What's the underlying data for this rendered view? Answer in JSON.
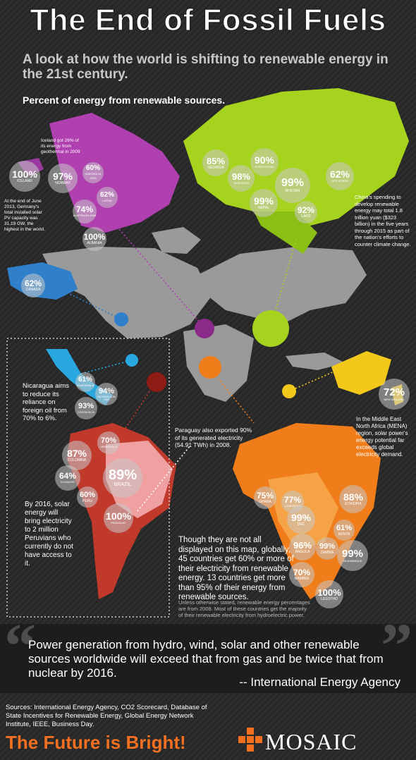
{
  "header": {
    "title": "The End of Fossil Fuels",
    "subtitle": "A look at how the world is shifting to renewable energy in the 21st century.",
    "section_label": "Percent of energy from renewable sources."
  },
  "colors": {
    "europe": "#b03fb0",
    "asia": "#a6d31d",
    "north_america": "#2f7fcb",
    "central_america": "#29a8e0",
    "south_america": "#c0392b",
    "africa": "#f07d1a",
    "australia": "#f2c81a",
    "land": "#9a9a9a",
    "accent": "#f37021"
  },
  "countries": [
    {
      "pct": "100%",
      "name": "ICELAND"
    },
    {
      "pct": "97%",
      "name": "NORWAY"
    },
    {
      "pct": "60%",
      "name": "SWEDEN IN 2009"
    },
    {
      "pct": "62%",
      "name": "LATVIA"
    },
    {
      "pct": "74%",
      "name": "AUSTRIA IN 2009"
    },
    {
      "pct": "100%",
      "name": "ALBANIA"
    },
    {
      "pct": "85%",
      "name": "GEORGIA"
    },
    {
      "pct": "90%",
      "name": "KYRGYZSTAN"
    },
    {
      "pct": "98%",
      "name": "TAJIKISTAN"
    },
    {
      "pct": "99%",
      "name": "BHUTAN"
    },
    {
      "pct": "62%",
      "name": "DPR KOREA"
    },
    {
      "pct": "99%",
      "name": "NEPAL"
    },
    {
      "pct": "92%",
      "name": "LAOS"
    },
    {
      "pct": "62%",
      "name": "CANADA"
    },
    {
      "pct": "61%",
      "name": "GUATEMALA"
    },
    {
      "pct": "94%",
      "name": "NICARAGUA IN 2009"
    },
    {
      "pct": "93%",
      "name": "COSTA RICA"
    },
    {
      "pct": "72%",
      "name": "NEW ZEALAND"
    },
    {
      "pct": "70%",
      "name": "VENEZUELA"
    },
    {
      "pct": "87%",
      "name": "COLOMBIA"
    },
    {
      "pct": "64%",
      "name": "ECUADOR"
    },
    {
      "pct": "89%",
      "name": "BRAZIL"
    },
    {
      "pct": "60%",
      "name": "PERU"
    },
    {
      "pct": "100%",
      "name": "PARAGUAY"
    },
    {
      "pct": "75%",
      "name": "GHANA"
    },
    {
      "pct": "77%",
      "name": "CAMEROON"
    },
    {
      "pct": "88%",
      "name": "ETHIOPIA"
    },
    {
      "pct": "99%",
      "name": "DRC"
    },
    {
      "pct": "61%",
      "name": "KENYA"
    },
    {
      "pct": "96%",
      "name": "ANGOLA"
    },
    {
      "pct": "99%",
      "name": "ZAMBIA"
    },
    {
      "pct": "99%",
      "name": "MOZAMBIQUE"
    },
    {
      "pct": "70%",
      "name": "NAMIBIA"
    },
    {
      "pct": "100%",
      "name": "LESOTHO"
    }
  ],
  "notes": {
    "iceland": "Iceland got 26% of its energy from geothermal in 2009",
    "germany": "At the end of June 2013, Germany's total installed solar PV capacity was 31.19 GW, the highest in the world.",
    "china": "China's spending to develop renewable energy may total 1.8 trillion yuan ($323 billion) in the five years through 2015 as part of the nation's efforts to counter climate change.",
    "nicaragua": "Nicaragua aims to reduce its reliance on foreign oil from 70% to 6%.",
    "paraguay": "Paraguay also exported 90% of its generated electricity (54.91 TWh) in 2008.",
    "mena": "In the Middle East North Africa (MENA) region, solar power's energy potential far exceeds global electricity demand.",
    "peru": "By 2016, solar energy will bring electricity to 2 million Peruvians who currently do not have access to it.",
    "global": "Though they are not all displayed on this map, globally, 45 countries get 60% or more of their electricity from renewable energy. 13 countries get more than 95% of their energy from renewable sources.",
    "footnote": "Unless otherwise stated, renewable energy percentages are from 2008. Most of these countries get the majority of their renewable electricity from hydroelectric power."
  },
  "quote": {
    "text": "Power generation from hydro, wind, solar and other renewable sources worldwide will exceed that from gas and be twice that from nuclear by 2016.",
    "attribution": "-- International Energy Agency"
  },
  "footer": {
    "sources": "Sources: International Energy Agency, CO2 Scorecard, Database of State Incentives for Renewable Energy, Global Energy Network Institute, IEEE, Business Day.",
    "tagline": "The Future is Bright!",
    "logo": "MOSAIC"
  }
}
